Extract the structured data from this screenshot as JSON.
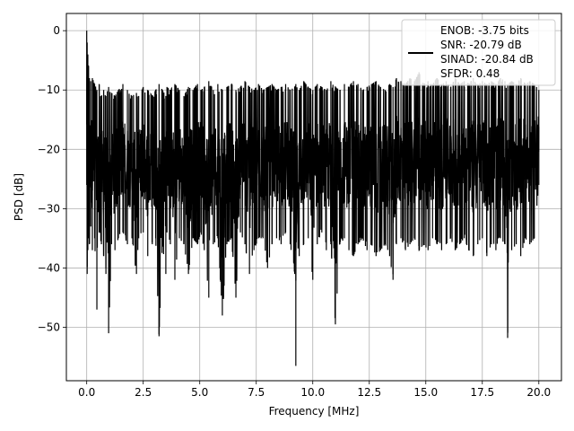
{
  "chart_data": {
    "type": "line",
    "title": "",
    "xlabel": "Frequency [MHz]",
    "ylabel": "PSD [dB]",
    "xlim": [
      -0.9,
      21.0
    ],
    "ylim": [
      -59.0,
      2.9
    ],
    "grid": true,
    "legend_position": "top-right",
    "xticks": [
      0.0,
      2.5,
      5.0,
      7.5,
      10.0,
      12.5,
      15.0,
      17.5,
      20.0
    ],
    "xtick_labels": [
      "0.0",
      "2.5",
      "5.0",
      "7.5",
      "10.0",
      "12.5",
      "15.0",
      "17.5",
      "20.0"
    ],
    "yticks": [
      0,
      -10,
      -20,
      -30,
      -40,
      -50
    ],
    "ytick_labels": [
      "0",
      "−10",
      "−20",
      "−30",
      "−40",
      "−50"
    ],
    "legend_lines": [
      "ENOB: -3.75 bits",
      "SNR: -20.79 dB",
      "SINAD: -20.84 dB",
      "SFDR: 0.48"
    ],
    "series": [
      {
        "color": "#000000",
        "x": [
          0.0,
          0.02,
          0.05,
          0.08,
          0.12,
          0.18,
          0.25,
          0.35,
          0.45,
          0.55,
          0.65,
          0.75,
          0.85,
          0.97,
          1.1,
          1.25,
          1.4,
          1.6,
          1.8,
          2.0,
          2.2,
          2.3,
          2.5,
          2.7,
          2.9,
          3.05,
          3.2,
          3.35,
          3.5,
          3.55,
          3.7,
          3.9,
          4.1,
          4.3,
          4.5,
          4.7,
          4.9,
          5.05,
          5.2,
          5.4,
          5.6,
          5.8,
          6.0,
          6.2,
          6.4,
          6.6,
          6.8,
          7.0,
          7.2,
          7.4,
          7.6,
          7.8,
          8.0,
          8.2,
          8.4,
          8.6,
          8.8,
          9.0,
          9.2,
          9.25,
          9.4,
          9.6,
          9.8,
          10.0,
          10.2,
          10.4,
          10.6,
          10.8,
          11.0,
          11.2,
          11.4,
          11.6,
          11.8,
          12.0,
          12.2,
          12.4,
          12.6,
          12.8,
          13.0,
          13.2,
          13.4,
          13.55,
          13.7,
          13.9,
          14.1,
          14.3,
          14.5,
          14.7,
          14.9,
          15.1,
          15.3,
          15.5,
          15.7,
          15.9,
          16.1,
          16.3,
          16.5,
          16.7,
          16.9,
          17.1,
          17.3,
          17.5,
          17.7,
          17.9,
          18.1,
          18.3,
          18.5,
          18.62,
          18.8,
          19.0,
          19.2,
          19.4,
          19.6,
          19.8,
          20.0
        ],
        "upper": [
          0.0,
          -2.0,
          -4.0,
          -6.0,
          -8.0,
          -8.5,
          -8.0,
          -9.0,
          -10.0,
          -9.0,
          -11.0,
          -10.0,
          -11.0,
          -9.5,
          -10.5,
          -11.0,
          -10.0,
          -9.0,
          -10.0,
          -11.0,
          -10.5,
          -11.0,
          -9.5,
          -10.0,
          -11.0,
          -10.0,
          -9.0,
          -10.0,
          -11.0,
          -9.5,
          -10.0,
          -9.0,
          -10.0,
          -11.0,
          -9.5,
          -10.0,
          -9.0,
          -10.0,
          -9.5,
          -8.5,
          -10.0,
          -9.0,
          -10.0,
          -9.5,
          -9.0,
          -10.0,
          -9.5,
          -8.5,
          -9.5,
          -10.0,
          -9.0,
          -10.0,
          -9.5,
          -9.0,
          -10.0,
          -9.5,
          -9.0,
          -10.0,
          -9.5,
          -9.0,
          -10.0,
          -8.5,
          -9.5,
          -10.0,
          -9.0,
          -9.5,
          -10.0,
          -8.5,
          -9.5,
          -10.0,
          -9.0,
          -9.5,
          -8.5,
          -9.0,
          -10.0,
          -9.5,
          -9.0,
          -8.5,
          -9.5,
          -10.0,
          -9.0,
          -9.5,
          -8.0,
          -8.5,
          -9.0,
          -8.0,
          -8.5,
          -7.0,
          -9.0,
          -8.5,
          -9.0,
          -8.0,
          -9.0,
          -8.5,
          -9.5,
          -8.0,
          -9.0,
          -8.5,
          -9.0,
          -8.0,
          -9.0,
          -8.5,
          -9.0,
          -8.5,
          -9.0,
          -8.0,
          -8.5,
          -9.0,
          -8.5,
          -9.0,
          -8.0,
          -9.0,
          -8.5,
          -9.0,
          -10.0
        ],
        "lower": [
          -26.0,
          -41.0,
          -37.0,
          -35.0,
          -36.0,
          -33.0,
          -37.0,
          -35.0,
          -47.0,
          -34.0,
          -36.0,
          -38.0,
          -41.0,
          -51.0,
          -36.0,
          -37.0,
          -35.0,
          -34.0,
          -36.0,
          -35.0,
          -41.0,
          -35.0,
          -34.0,
          -38.0,
          -36.0,
          -35.0,
          -51.5,
          -36.0,
          -41.0,
          -34.0,
          -36.0,
          -42.0,
          -35.0,
          -36.0,
          -41.0,
          -35.0,
          -36.0,
          -34.0,
          -37.0,
          -45.0,
          -36.0,
          -35.0,
          -48.0,
          -36.0,
          -35.0,
          -45.0,
          -34.0,
          -36.0,
          -41.0,
          -37.0,
          -35.0,
          -35.0,
          -40.0,
          -36.0,
          -35.0,
          -36.0,
          -34.0,
          -36.0,
          -41.0,
          -56.5,
          -38.0,
          -36.0,
          -35.0,
          -42.0,
          -36.0,
          -34.0,
          -37.0,
          -36.0,
          -49.5,
          -36.0,
          -35.0,
          -37.0,
          -38.0,
          -36.0,
          -35.0,
          -37.0,
          -36.0,
          -38.0,
          -37.0,
          -36.0,
          -38.0,
          -42.0,
          -36.0,
          -35.0,
          -37.0,
          -36.0,
          -35.0,
          -37.0,
          -36.0,
          -37.0,
          -35.0,
          -36.0,
          -37.0,
          -36.0,
          -35.0,
          -37.0,
          -36.0,
          -35.0,
          -37.0,
          -38.0,
          -36.0,
          -35.0,
          -38.0,
          -36.0,
          -37.0,
          -35.0,
          -36.0,
          -51.8,
          -37.0,
          -36.0,
          -38.0,
          -35.0,
          -36.0,
          -35.0,
          -26.0
        ]
      }
    ]
  }
}
